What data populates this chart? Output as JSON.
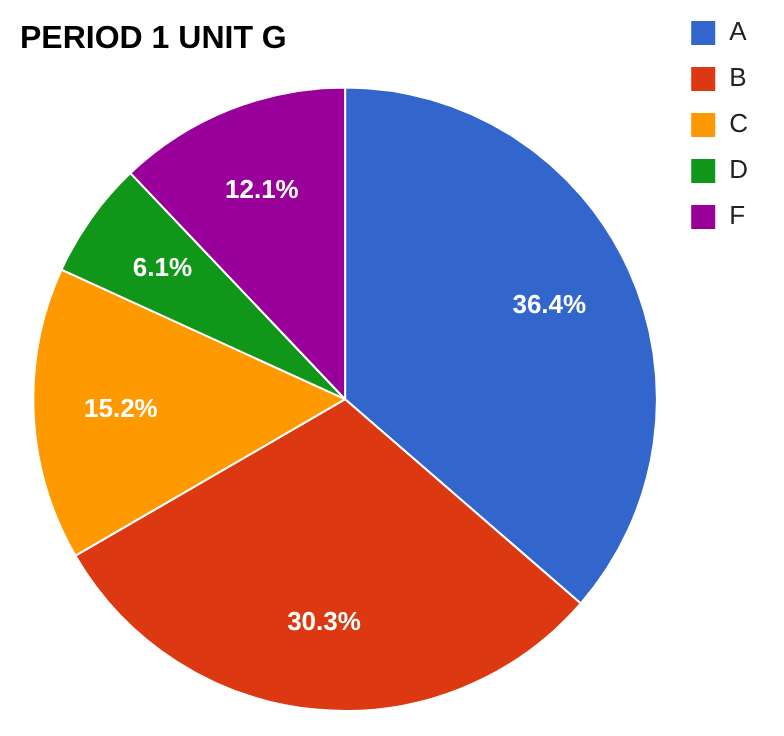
{
  "chart_data": {
    "type": "pie",
    "title": "PERIOD 1 UNIT G",
    "categories": [
      "A",
      "B",
      "C",
      "D",
      "F"
    ],
    "values": [
      36.4,
      30.3,
      15.2,
      6.1,
      12.1
    ],
    "value_labels": [
      "36.4%",
      "30.3%",
      "15.2%",
      "6.1%",
      "12.1%"
    ],
    "colors": [
      "#3366cc",
      "#dc3912",
      "#ff9900",
      "#109618",
      "#990099"
    ],
    "legend": "top right"
  }
}
